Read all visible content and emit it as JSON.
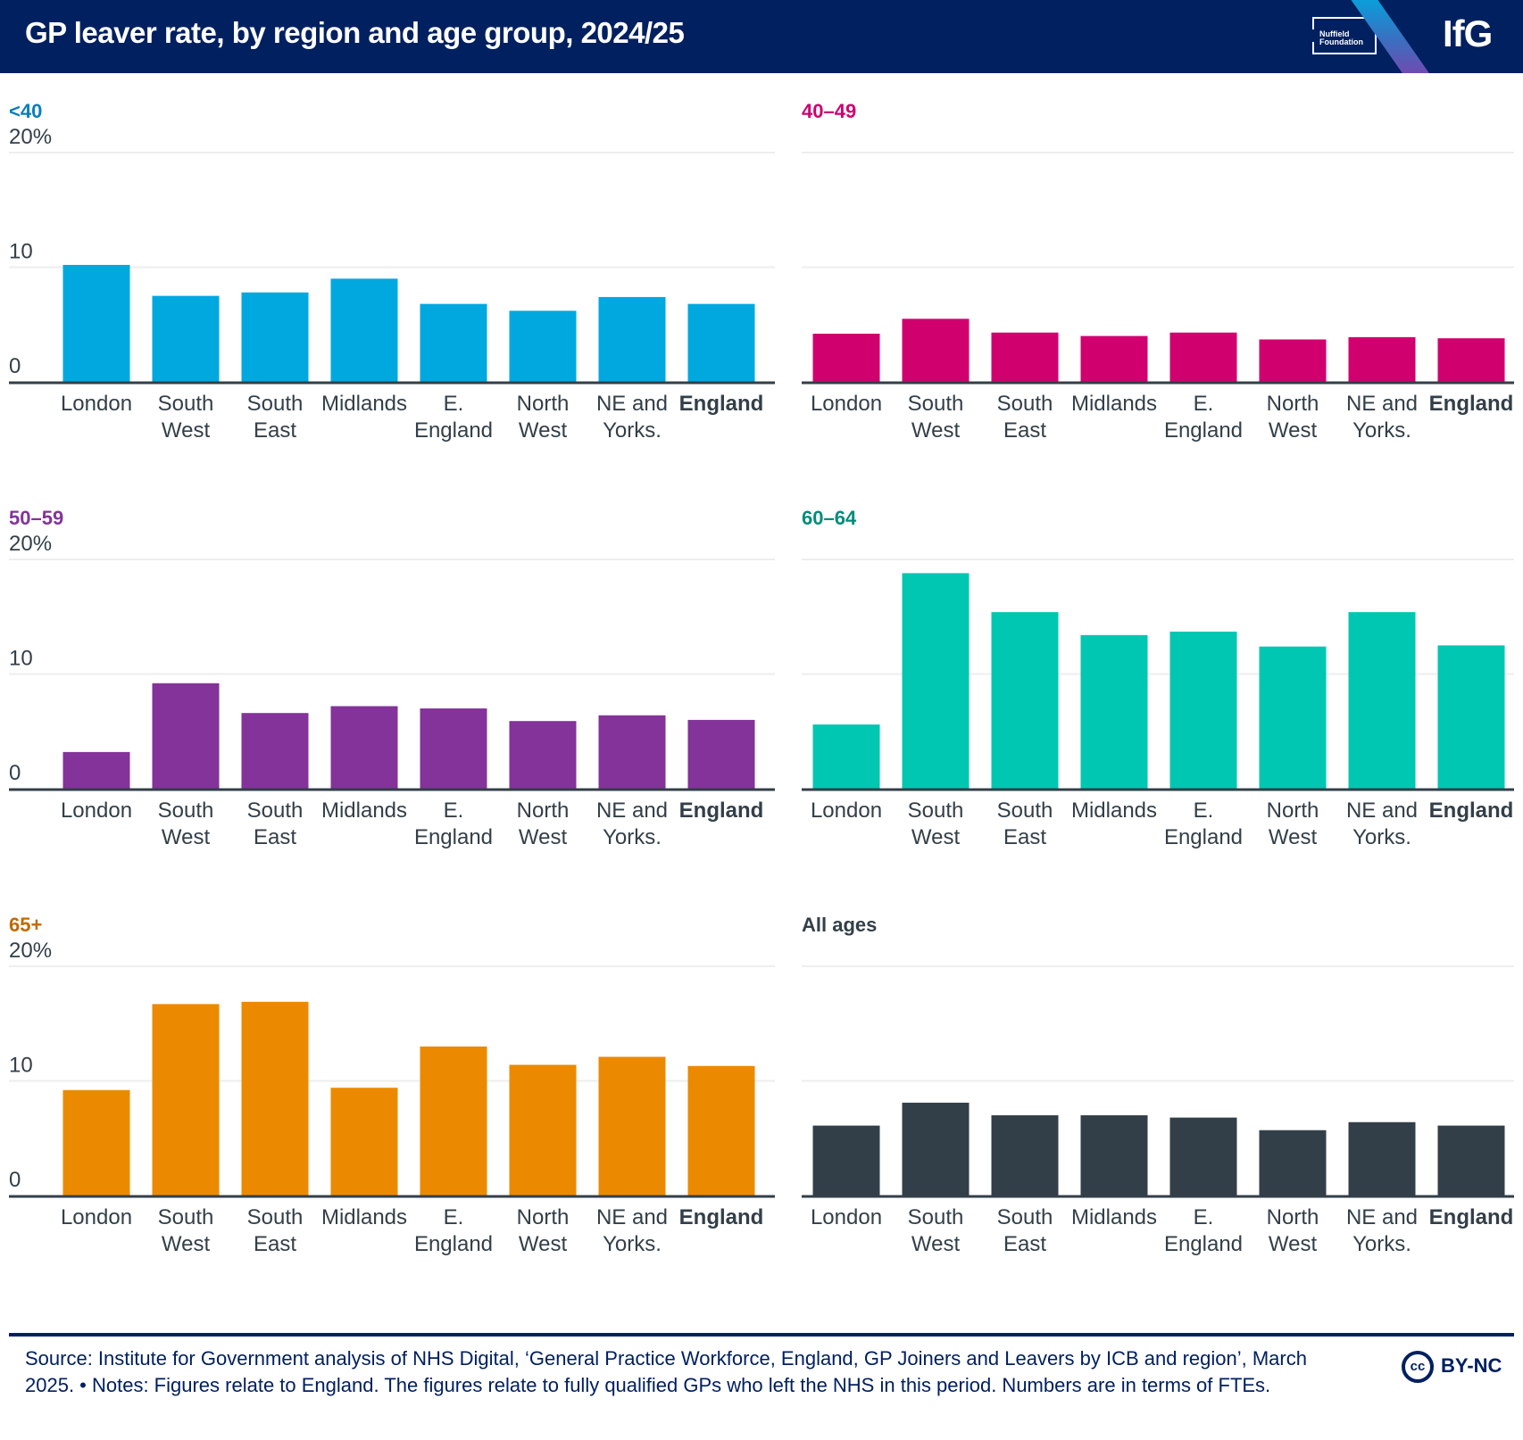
{
  "header": {
    "title": "GP leaver rate, by region and age group, 2024/25",
    "partner_logo": "Nuffield Foundation",
    "brand_logo": "IfG"
  },
  "colors": {
    "header_bg": "#002060",
    "axis": "#333f48",
    "grid": "#eeeeee"
  },
  "chart_data": [
    {
      "type": "bar",
      "title": "<40",
      "color": "#00a8e0",
      "title_color": "#0a7fb8",
      "categories": [
        "London",
        "South West",
        "South East",
        "Midlands",
        "E. England",
        "North West",
        "NE and Yorks.",
        "England"
      ],
      "values": [
        10.2,
        7.5,
        7.8,
        9.0,
        6.8,
        6.2,
        7.4,
        6.8
      ],
      "ylim": [
        0,
        20
      ],
      "yticks": [
        "0",
        "10",
        "20%"
      ],
      "show_ytick_labels": true,
      "grid": true,
      "xlabel": "",
      "ylabel": ""
    },
    {
      "type": "bar",
      "title": "40–49",
      "color": "#d0006f",
      "title_color": "#d0006f",
      "categories": [
        "London",
        "South West",
        "South East",
        "Midlands",
        "E. England",
        "North West",
        "NE and Yorks.",
        "England"
      ],
      "values": [
        4.2,
        5.5,
        4.3,
        4.0,
        4.3,
        3.7,
        3.9,
        3.8
      ],
      "ylim": [
        0,
        20
      ],
      "yticks": [
        "0",
        "10",
        "20%"
      ],
      "show_ytick_labels": false,
      "grid": true,
      "xlabel": "",
      "ylabel": ""
    },
    {
      "type": "bar",
      "title": "50–59",
      "color": "#833399",
      "title_color": "#833399",
      "categories": [
        "London",
        "South West",
        "South East",
        "Midlands",
        "E. England",
        "North West",
        "NE and Yorks.",
        "England"
      ],
      "values": [
        3.2,
        9.2,
        6.6,
        7.2,
        7.0,
        5.9,
        6.4,
        6.0
      ],
      "ylim": [
        0,
        20
      ],
      "yticks": [
        "0",
        "10",
        "20%"
      ],
      "show_ytick_labels": true,
      "grid": true,
      "xlabel": "",
      "ylabel": ""
    },
    {
      "type": "bar",
      "title": "60–64",
      "color": "#00c7b1",
      "title_color": "#008c7a",
      "categories": [
        "London",
        "South West",
        "South East",
        "Midlands",
        "E. England",
        "North West",
        "NE and Yorks.",
        "England"
      ],
      "values": [
        5.6,
        18.8,
        15.4,
        13.4,
        13.7,
        12.4,
        15.4,
        12.5
      ],
      "ylim": [
        0,
        20
      ],
      "yticks": [
        "0",
        "10",
        "20%"
      ],
      "show_ytick_labels": false,
      "grid": true,
      "xlabel": "",
      "ylabel": ""
    },
    {
      "type": "bar",
      "title": "65+",
      "color": "#eb8a00",
      "title_color": "#c06a00",
      "categories": [
        "London",
        "South West",
        "South East",
        "Midlands",
        "E. England",
        "North West",
        "NE and Yorks.",
        "England"
      ],
      "values": [
        9.2,
        16.7,
        16.9,
        9.4,
        13.0,
        11.4,
        12.1,
        11.3
      ],
      "ylim": [
        0,
        20
      ],
      "yticks": [
        "0",
        "10",
        "20%"
      ],
      "show_ytick_labels": true,
      "grid": true,
      "xlabel": "",
      "ylabel": ""
    },
    {
      "type": "bar",
      "title": "All ages",
      "color": "#333f48",
      "title_color": "#333f48",
      "categories": [
        "London",
        "South West",
        "South East",
        "Midlands",
        "E. England",
        "North West",
        "NE and Yorks.",
        "England"
      ],
      "values": [
        6.1,
        8.1,
        7.0,
        7.0,
        6.8,
        5.7,
        6.4,
        6.1
      ],
      "ylim": [
        0,
        20
      ],
      "yticks": [
        "0",
        "10",
        "20%"
      ],
      "show_ytick_labels": false,
      "grid": true,
      "xlabel": "",
      "ylabel": ""
    }
  ],
  "category_labels": [
    [
      "London"
    ],
    [
      "South",
      "West"
    ],
    [
      "South",
      "East"
    ],
    [
      "Midlands"
    ],
    [
      "E.",
      "England"
    ],
    [
      "North",
      "West"
    ],
    [
      "NE and",
      "Yorks."
    ],
    [
      "England"
    ]
  ],
  "emphasized_category": "England",
  "footer": {
    "source_text": "Source: Institute for Government analysis of NHS Digital, ‘General Practice Workforce, England, GP Joiners and Leavers by ICB and region’, March 2025. • Notes: Figures relate to England. The figures relate to fully qualified GPs who left the NHS in this period. Numbers are in terms of FTEs.",
    "license_icon": "cc",
    "license_label": "BY-NC"
  }
}
